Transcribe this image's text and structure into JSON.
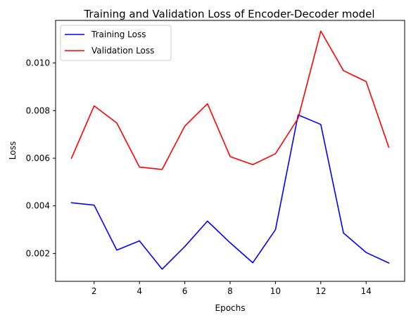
{
  "chart_data": {
    "type": "line",
    "title": "Training and Validation Loss of Encoder-Decoder model",
    "xlabel": "Epochs",
    "ylabel": "Loss",
    "x": [
      1,
      2,
      3,
      4,
      5,
      6,
      7,
      8,
      9,
      10,
      11,
      12,
      13,
      14,
      15
    ],
    "xticks": [
      2,
      4,
      6,
      8,
      10,
      12,
      14
    ],
    "yticks": [
      0.002,
      0.004,
      0.006,
      0.008,
      0.01
    ],
    "ytick_labels": [
      "0.002",
      "0.004",
      "0.006",
      "0.008",
      "0.010"
    ],
    "xlim": [
      0.3,
      15.7
    ],
    "ylim": [
      0.00083,
      0.01179
    ],
    "grid": false,
    "legend_position": "top-left",
    "series": [
      {
        "name": "Training Loss",
        "color": "#0000ff",
        "values": [
          0.00413,
          0.00403,
          0.00214,
          0.00253,
          0.00134,
          0.00229,
          0.00336,
          0.00245,
          0.00161,
          0.003,
          0.00782,
          0.00742,
          0.00286,
          0.00204,
          0.0016
        ]
      },
      {
        "name": "Validation Loss",
        "color": "#ff0000",
        "values": [
          0.006,
          0.0082,
          0.00748,
          0.00563,
          0.00553,
          0.00735,
          0.00829,
          0.00607,
          0.00573,
          0.00619,
          0.00768,
          0.01134,
          0.00968,
          0.00922,
          0.00646
        ]
      }
    ]
  }
}
